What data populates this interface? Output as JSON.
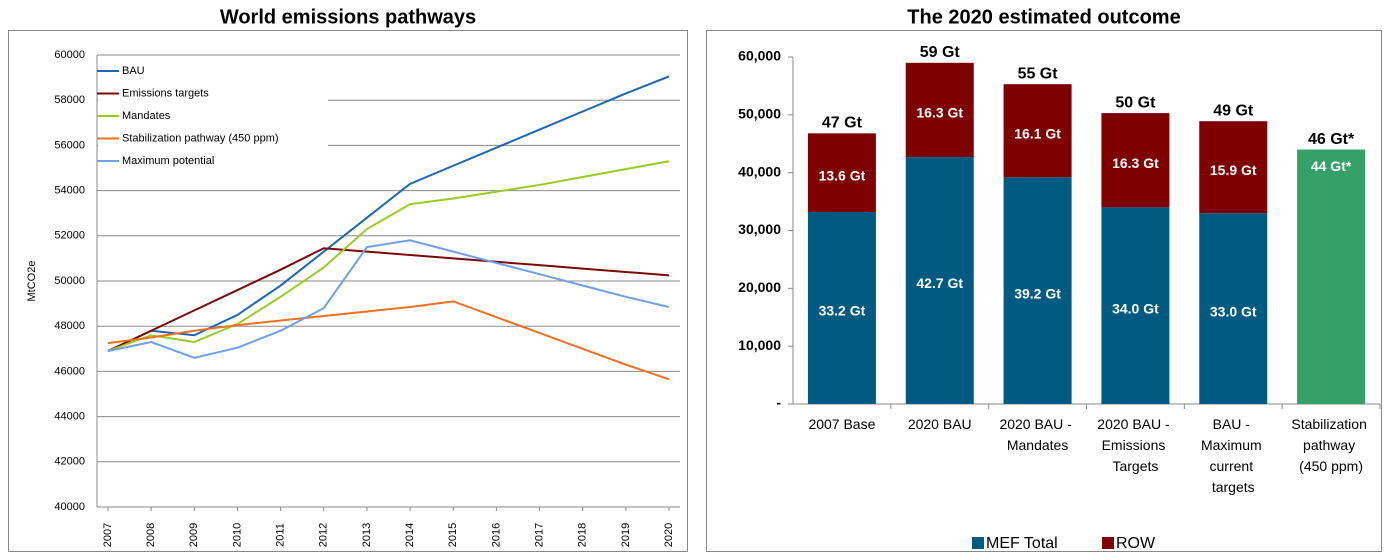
{
  "chart_data": [
    {
      "type": "line",
      "title": "World emissions pathways",
      "y_label": "MtCO2e",
      "categories": [
        "2007",
        "2008",
        "2009",
        "2010",
        "2011",
        "2012",
        "2013",
        "2014",
        "2015",
        "2016",
        "2017",
        "2018",
        "2019",
        "2020"
      ],
      "ylim": [
        40000,
        60000
      ],
      "yticks": [
        40000,
        42000,
        44000,
        46000,
        48000,
        50000,
        52000,
        54000,
        56000,
        58000,
        60000
      ],
      "grid": true,
      "legend": "upper left",
      "series": [
        {
          "name": "BAU",
          "color": "#1a66b8",
          "values": [
            46900,
            47800,
            47600,
            48500,
            49800,
            51300,
            52800,
            54300,
            55100,
            55900,
            56700,
            57500,
            58300,
            59050
          ]
        },
        {
          "name": "Emissions targets",
          "color": "#7a0a0a",
          "values": [
            46900,
            47800,
            48700,
            49600,
            50500,
            51450,
            51300,
            51150,
            51000,
            50850,
            50700,
            50550,
            50400,
            50250
          ]
        },
        {
          "name": "Mandates",
          "color": "#99cc22",
          "values": [
            46900,
            47600,
            47300,
            48100,
            49300,
            50600,
            52300,
            53400,
            53650,
            53950,
            54250,
            54600,
            54950,
            55300
          ]
        },
        {
          "name": "Stabilization pathway (450 ppm)",
          "color": "#f07020",
          "values": [
            47250,
            47500,
            47800,
            48050,
            48250,
            48450,
            48650,
            48850,
            49100,
            48400,
            47700,
            47000,
            46300,
            45650
          ]
        },
        {
          "name": "Maximum potential",
          "color": "#6f9fe8",
          "values": [
            46900,
            47300,
            46600,
            47050,
            47800,
            48800,
            51500,
            51800,
            51300,
            50800,
            50300,
            49800,
            49300,
            48850
          ]
        }
      ]
    },
    {
      "type": "stacked_bar",
      "title": "The 2020 estimated outcome",
      "categories": [
        "2007 Base",
        "2020 BAU",
        "2020 BAU - Mandates",
        "2020 BAU - Emissions Targets",
        "BAU - Maximum current targets",
        "Stabilization pathway (450 ppm)"
      ],
      "ylim": [
        0,
        60000
      ],
      "yticks": [
        {
          "value": 0,
          "label": "-"
        },
        {
          "value": 10000,
          "label": "10,000"
        },
        {
          "value": 20000,
          "label": "20,000"
        },
        {
          "value": 30000,
          "label": "30,000"
        },
        {
          "value": 40000,
          "label": "40,000"
        },
        {
          "value": 50000,
          "label": "50,000"
        },
        {
          "value": 60000,
          "label": "60,000"
        }
      ],
      "legend": "bottom",
      "series": [
        {
          "name": "MEF Total",
          "color": "#005a82",
          "point_colors": [
            "#005a82",
            "#005a82",
            "#005a82",
            "#005a82",
            "#005a82",
            "#35a068"
          ],
          "values": [
            33200,
            42700,
            39200,
            34000,
            33000,
            44000
          ],
          "value_labels": [
            "33.2 Gt",
            "42.7 Gt",
            "39.2 Gt",
            "34.0 Gt",
            "33.0 Gt",
            "44 Gt*"
          ]
        },
        {
          "name": "ROW",
          "color": "#7f0000",
          "values": [
            13600,
            16300,
            16100,
            16300,
            15900,
            null
          ],
          "value_labels": [
            "13.6 Gt",
            "16.3 Gt",
            "16.1 Gt",
            "16.3 Gt",
            "15.9 Gt",
            null
          ]
        }
      ],
      "total_labels": [
        "47 Gt",
        "59 Gt",
        "55 Gt",
        "50 Gt",
        "49 Gt",
        "46 Gt*"
      ]
    }
  ]
}
